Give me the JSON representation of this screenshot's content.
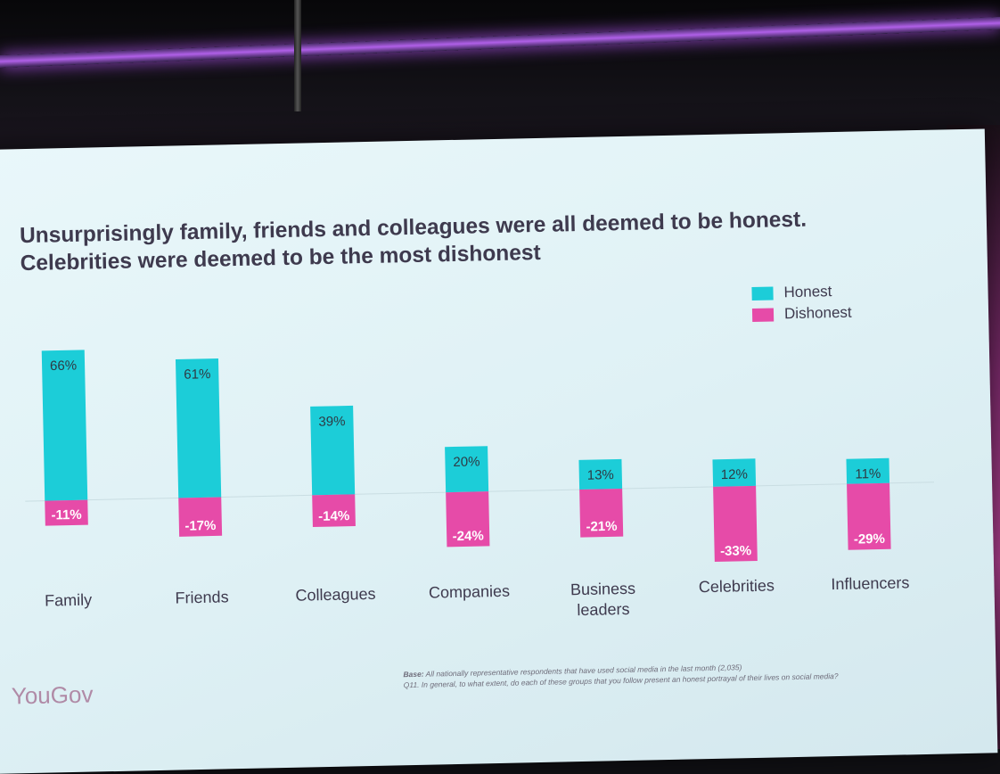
{
  "slide": {
    "title": "Unsurprisingly family, friends and colleagues were all deemed to be honest. Celebrities were deemed to be the most dishonest",
    "brand": "YouGov",
    "footnote_base_label": "Base:",
    "footnote_base": "All nationally representative respondents that have used social media in the last month (2,035)",
    "footnote_question": "Q11. In general, to what extent, do each of these groups that you follow present an honest portrayal of their lives on social media?"
  },
  "colors": {
    "honest": "#1ccdd8",
    "dishonest": "#e64ba8"
  },
  "chart_data": {
    "type": "bar",
    "title": "Unsurprisingly family, friends and colleagues were all deemed to be honest. Celebrities were deemed to be the most dishonest",
    "categories": [
      "Family",
      "Friends",
      "Colleagues",
      "Companies",
      "Business leaders",
      "Celebrities",
      "Influencers"
    ],
    "series": [
      {
        "name": "Honest",
        "values": [
          66,
          61,
          39,
          20,
          13,
          12,
          11
        ],
        "labels": [
          "66%",
          "61%",
          "39%",
          "20%",
          "13%",
          "12%",
          "11%"
        ]
      },
      {
        "name": "Dishonest",
        "values": [
          -11,
          -17,
          -14,
          -24,
          -21,
          -33,
          -29
        ],
        "labels": [
          "-11%",
          "-17%",
          "-14%",
          "-24%",
          "-21%",
          "-33%",
          "-29%"
        ]
      }
    ],
    "ylim": [
      -35,
      70
    ],
    "stacked": "diverging",
    "grid": false,
    "legend": "top-right"
  }
}
